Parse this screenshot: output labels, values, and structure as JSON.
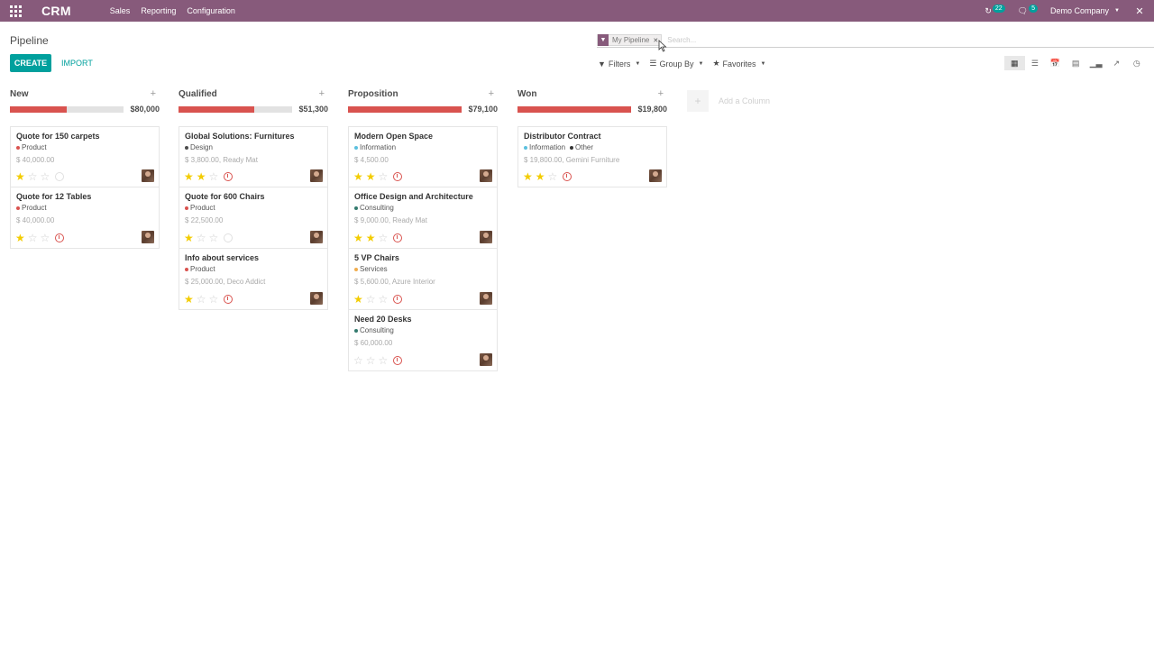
{
  "navbar": {
    "brand": "CRM",
    "menu": [
      "Sales",
      "Reporting",
      "Configuration"
    ],
    "activity_count": "22",
    "messages_count": "5",
    "company": "Demo Company"
  },
  "control_panel": {
    "breadcrumb": "Pipeline",
    "create_label": "CREATE",
    "import_label": "IMPORT",
    "facet_label": "My Pipeline",
    "search_placeholder": "Search...",
    "filters_label": "Filters",
    "groupby_label": "Group By",
    "favorites_label": "Favorites",
    "views": [
      "kanban",
      "list",
      "calendar",
      "pivot",
      "graph",
      "cohort",
      "activity"
    ],
    "active_view": "kanban"
  },
  "columns": [
    {
      "title": "New",
      "total": "$80,000",
      "progress": 0.5,
      "cards": [
        {
          "title": "Quote for 150 carpets",
          "tags": [
            {
              "label": "Product",
              "color": "#d9534f"
            }
          ],
          "meta": "$ 40,000.00",
          "stars": 1,
          "activity": "none"
        },
        {
          "title": "Quote for 12 Tables",
          "tags": [
            {
              "label": "Product",
              "color": "#d9534f"
            }
          ],
          "meta": "$ 40,000.00",
          "stars": 1,
          "activity": "overdue"
        }
      ]
    },
    {
      "title": "Qualified",
      "total": "$51,300",
      "progress": 0.67,
      "cards": [
        {
          "title": "Global Solutions: Furnitures",
          "tags": [
            {
              "label": "Design",
              "color": "#4c4c4c"
            }
          ],
          "meta": "$ 3,800.00, Ready Mat",
          "stars": 2,
          "activity": "overdue"
        },
        {
          "title": "Quote for 600 Chairs",
          "tags": [
            {
              "label": "Product",
              "color": "#d9534f"
            }
          ],
          "meta": "$ 22,500.00",
          "stars": 1,
          "activity": "none"
        },
        {
          "title": "Info about services",
          "tags": [
            {
              "label": "Product",
              "color": "#d9534f"
            }
          ],
          "meta": "$ 25,000.00, Deco Addict",
          "stars": 1,
          "activity": "overdue"
        }
      ]
    },
    {
      "title": "Proposition",
      "total": "$79,100",
      "progress": 1.0,
      "cards": [
        {
          "title": "Modern Open Space",
          "tags": [
            {
              "label": "Information",
              "color": "#5bc0de"
            }
          ],
          "meta": "$ 4,500.00",
          "stars": 2,
          "activity": "overdue"
        },
        {
          "title": "Office Design and Architecture",
          "tags": [
            {
              "label": "Consulting",
              "color": "#337a6e"
            }
          ],
          "meta": "$ 9,000.00, Ready Mat",
          "stars": 2,
          "activity": "overdue"
        },
        {
          "title": "5 VP Chairs",
          "tags": [
            {
              "label": "Services",
              "color": "#f0ad4e"
            }
          ],
          "meta": "$ 5,600.00, Azure Interior",
          "stars": 1,
          "activity": "overdue"
        },
        {
          "title": "Need 20 Desks",
          "tags": [
            {
              "label": "Consulting",
              "color": "#337a6e"
            }
          ],
          "meta": "$ 60,000.00",
          "stars": 0,
          "activity": "overdue"
        }
      ]
    },
    {
      "title": "Won",
      "total": "$19,800",
      "progress": 1.0,
      "cards": [
        {
          "title": "Distributor Contract",
          "tags": [
            {
              "label": "Information",
              "color": "#5bc0de"
            },
            {
              "label": "Other",
              "color": "#333333"
            }
          ],
          "meta": "$ 19,800.00, Gemini Furniture",
          "stars": 2,
          "activity": "overdue"
        }
      ]
    }
  ],
  "add_column_label": "Add a Column"
}
